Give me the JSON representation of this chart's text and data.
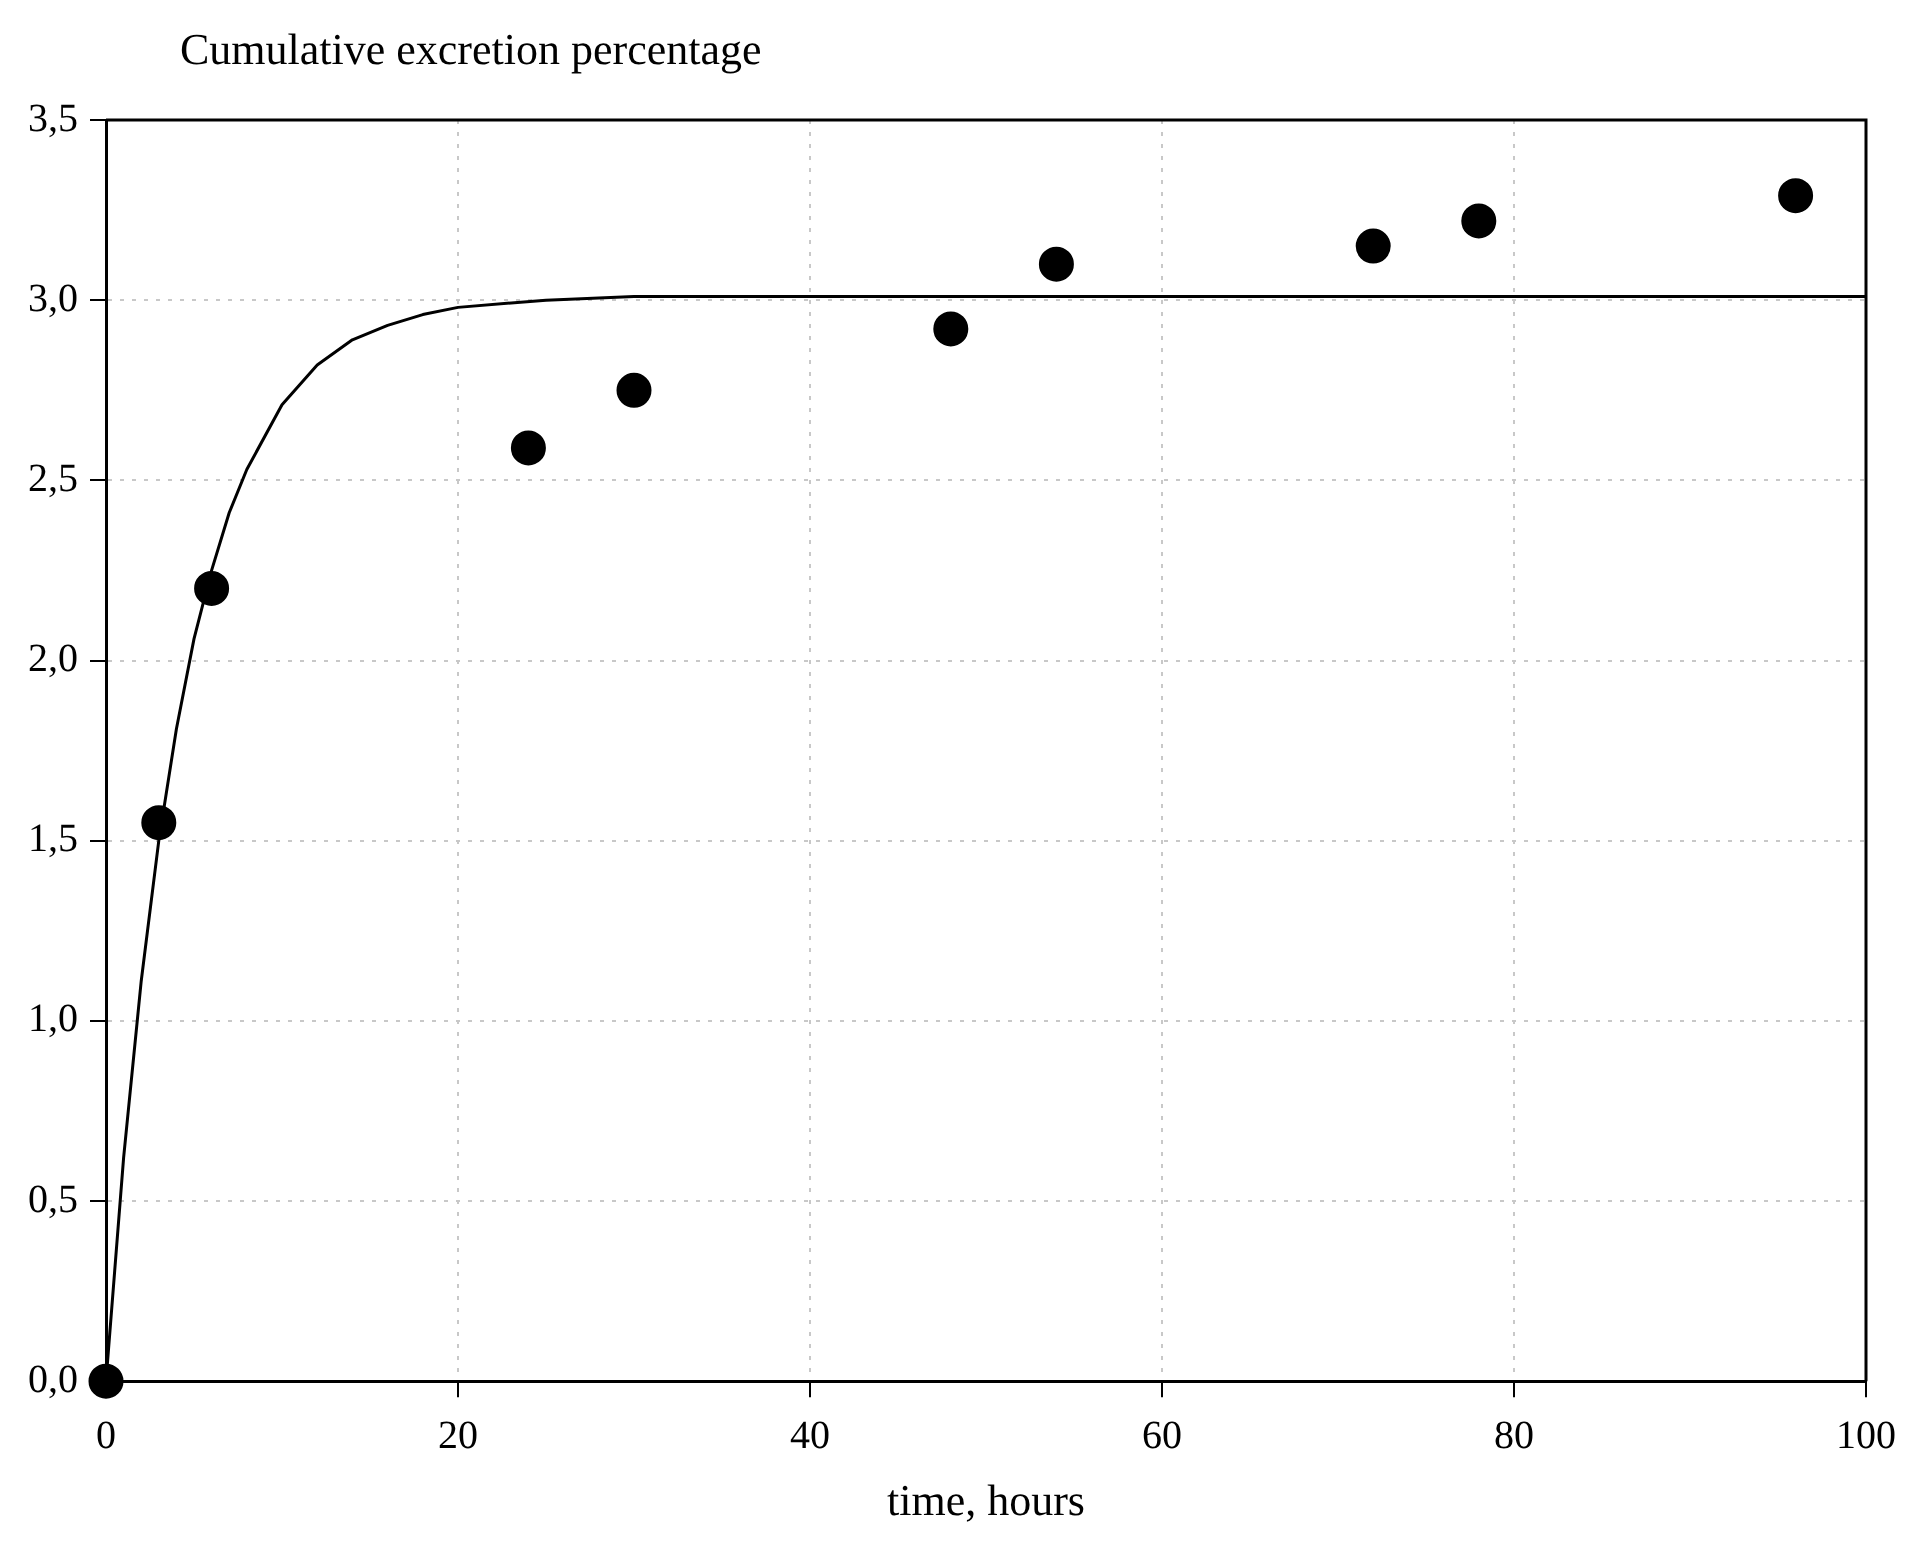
{
  "chart_data": {
    "type": "scatter",
    "title": "Cumulative excretion percentage",
    "xlabel": "time, hours",
    "x": [
      0,
      3,
      6,
      24,
      30,
      48,
      54,
      72,
      78,
      96
    ],
    "series": [
      {
        "type": "scatter",
        "color": "#000000",
        "marker": "circle",
        "values": [
          0,
          1.55,
          2.2,
          2.59,
          2.75,
          2.92,
          3.1,
          3.15,
          3.22,
          3.29
        ]
      },
      {
        "type": "line",
        "color": "#000000",
        "marker": "none",
        "line_style": "solid",
        "x": [
          0,
          1,
          2,
          3,
          4,
          5,
          6,
          7,
          8,
          10,
          12,
          14,
          16,
          18,
          20,
          25,
          30,
          40,
          100
        ],
        "values": [
          0,
          0.62,
          1.11,
          1.5,
          1.81,
          2.06,
          2.25,
          2.41,
          2.53,
          2.71,
          2.82,
          2.89,
          2.93,
          2.96,
          2.98,
          3.0,
          3.01,
          3.01,
          3.01
        ]
      }
    ],
    "xlim": [
      0,
      100
    ],
    "xticks": [
      0,
      20,
      40,
      60,
      80,
      100
    ],
    "ylim": [
      0,
      3.5
    ],
    "yticks": [
      {
        "value": 0,
        "label": "0,0"
      },
      {
        "value": 0.5,
        "label": "0,5"
      },
      {
        "value": 1,
        "label": "1,0"
      },
      {
        "value": 1.5,
        "label": "1,5"
      },
      {
        "value": 2,
        "label": "2,0"
      },
      {
        "value": 2.5,
        "label": "2,5"
      },
      {
        "value": 3,
        "label": "3,0"
      },
      {
        "value": 3.5,
        "label": "3,5"
      }
    ],
    "grid": true,
    "legend": false
  }
}
